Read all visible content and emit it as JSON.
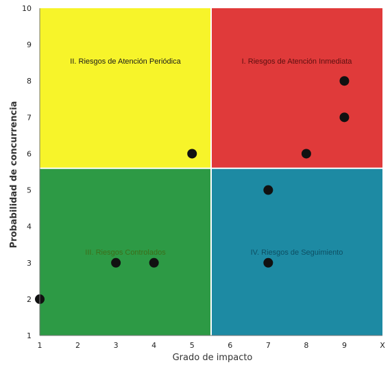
{
  "chart_data": {
    "type": "scatter",
    "title": "",
    "xlabel": "Grado de impacto",
    "ylabel": "Probabilidad de concurrencia",
    "xlim": [
      1,
      10
    ],
    "ylim": [
      1,
      10
    ],
    "x_ticks": [
      "1",
      "2",
      "3",
      "4",
      "5",
      "6",
      "7",
      "8",
      "9",
      "X"
    ],
    "y_ticks": [
      "1",
      "2",
      "3",
      "4",
      "5",
      "6",
      "7",
      "8",
      "9",
      "10"
    ],
    "grid": false,
    "legend": "none",
    "quadrants": [
      {
        "id": "I",
        "label": "I. Riesgos de Atención Inmediata",
        "color": "#e03a3a",
        "label_color": "#5a0f0f",
        "x_range": [
          5.5,
          10
        ],
        "y_range": [
          5.6,
          10
        ]
      },
      {
        "id": "II",
        "label": "II. Riesgos de Atención Periódica",
        "color": "#f7f42a",
        "label_color": "#1a1a1a",
        "x_range": [
          1,
          5.5
        ],
        "y_range": [
          5.6,
          10
        ]
      },
      {
        "id": "III",
        "label": "III. Riesgos Controlados",
        "color": "#2d9a45",
        "label_color": "#3c6e1a",
        "x_range": [
          1,
          5.5
        ],
        "y_range": [
          1,
          5.6
        ]
      },
      {
        "id": "IV",
        "label": "IV. Riesgos de Seguimiento",
        "color": "#1d8aa3",
        "label_color": "#0d4f63",
        "x_range": [
          5.5,
          10
        ],
        "y_range": [
          1,
          5.6
        ]
      }
    ],
    "points": [
      {
        "x": 1,
        "y": 2
      },
      {
        "x": 3,
        "y": 3
      },
      {
        "x": 4,
        "y": 3
      },
      {
        "x": 5,
        "y": 6
      },
      {
        "x": 7,
        "y": 3
      },
      {
        "x": 7,
        "y": 5
      },
      {
        "x": 8,
        "y": 6
      },
      {
        "x": 9,
        "y": 7
      },
      {
        "x": 9,
        "y": 8
      }
    ],
    "point_color": "#111111"
  }
}
